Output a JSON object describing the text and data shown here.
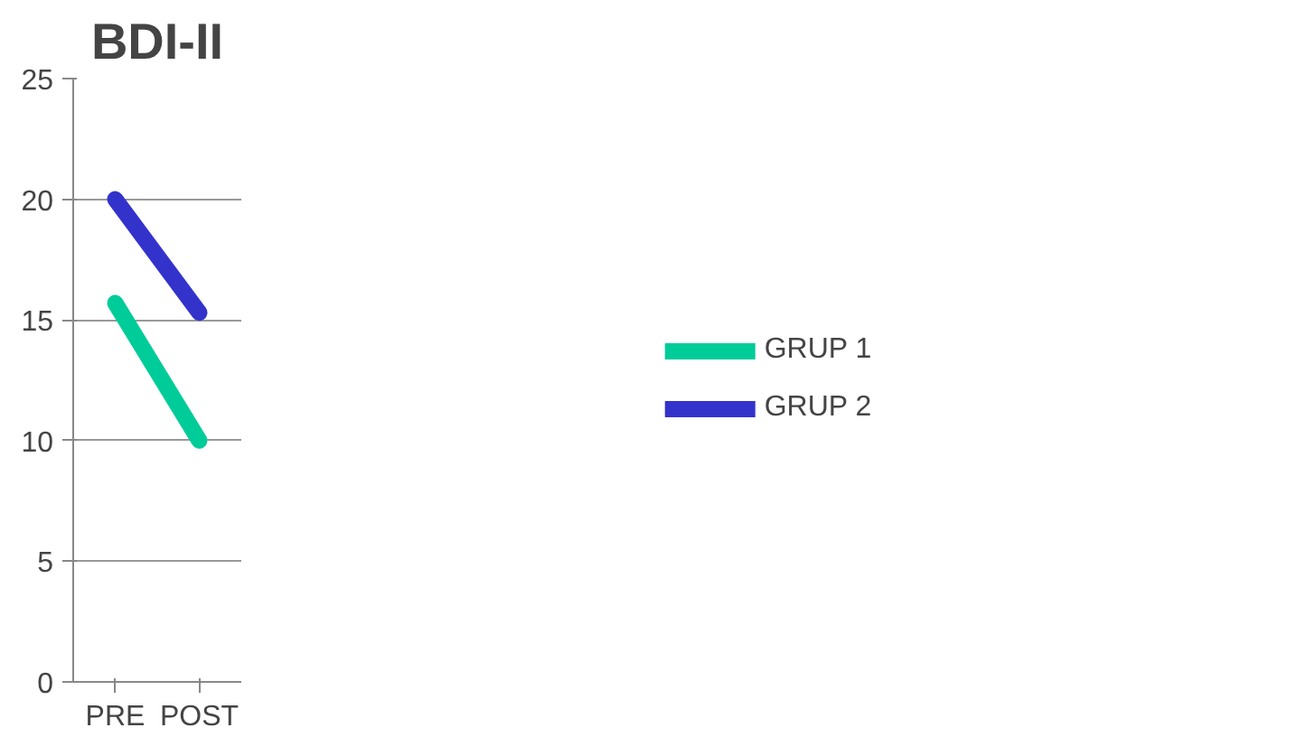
{
  "chart_data": {
    "type": "line",
    "title": "BDI-II",
    "categories": [
      "PRE",
      "POST"
    ],
    "series": [
      {
        "name": "GRUP 1",
        "color": "#00cc99",
        "values": [
          15.7,
          10
        ]
      },
      {
        "name": "GRUP 2",
        "color": "#3333cc",
        "values": [
          20,
          15.3
        ]
      }
    ],
    "ylim": [
      0,
      25
    ],
    "yticks": [
      0,
      5,
      10,
      15,
      20,
      25
    ],
    "grid": "y",
    "legend": "right",
    "marker": "none",
    "line_style": "solid"
  }
}
